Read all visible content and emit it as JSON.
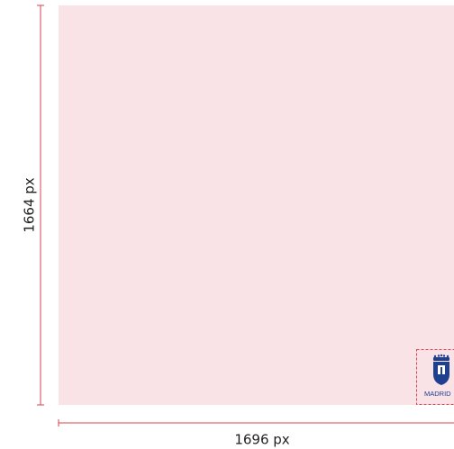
{
  "dimensions": {
    "height": "1664 px",
    "width": "1696 px"
  },
  "logo": {
    "text": "MADRID"
  }
}
